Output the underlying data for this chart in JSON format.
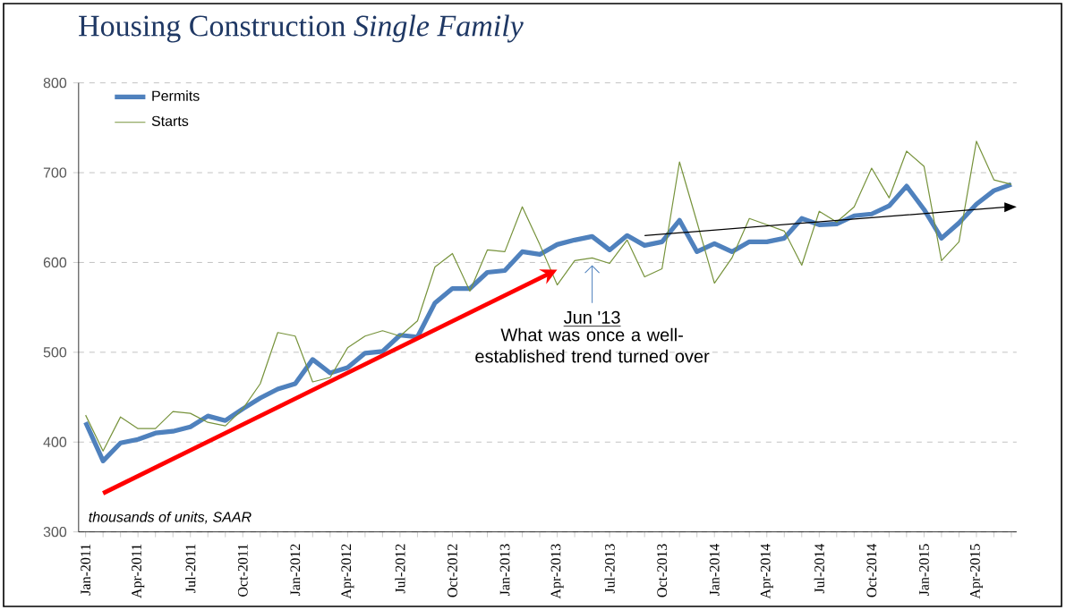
{
  "chart_data": {
    "type": "line",
    "title": "Housing Construction *Single Family*",
    "categories": [
      "Jan-2011",
      null,
      null,
      "Apr-2011",
      null,
      null,
      "Jul-2011",
      null,
      null,
      "Oct-2011",
      null,
      null,
      "Jan-2012",
      null,
      null,
      "Apr-2012",
      null,
      null,
      "Jul-2012",
      null,
      null,
      "Oct-2012",
      null,
      null,
      "Jan-2013",
      null,
      null,
      "Apr-2013",
      null,
      null,
      "Jul-2013",
      null,
      null,
      "Oct-2013",
      null,
      null,
      "Jan-2014",
      null,
      null,
      "Apr-2014",
      null,
      null,
      "Jul-2014",
      null,
      null,
      "Oct-2014",
      null,
      null,
      "Jan-2015",
      null,
      null,
      "Apr-2015",
      null,
      null
    ],
    "series": [
      {
        "name": "Permits",
        "color": "#4f81bd",
        "values": [
          422,
          379,
          399,
          403,
          410,
          412,
          417,
          429,
          424,
          437,
          449,
          459,
          465,
          492,
          477,
          483,
          499,
          501,
          519,
          517,
          555,
          571,
          571,
          589,
          591,
          612,
          609,
          620,
          625,
          629,
          614,
          630,
          619,
          623,
          647,
          612,
          621,
          612,
          623,
          623,
          627,
          649,
          642,
          643,
          652,
          654,
          663,
          685,
          659,
          627,
          644,
          665,
          680,
          687
        ]
      },
      {
        "name": "Starts",
        "color": "#77933c",
        "values": [
          430,
          390,
          428,
          415,
          415,
          434,
          432,
          422,
          418,
          437,
          465,
          522,
          518,
          467,
          472,
          505,
          518,
          524,
          518,
          535,
          595,
          610,
          568,
          614,
          612,
          662,
          620,
          575,
          602,
          605,
          599,
          625,
          584,
          593,
          712,
          645,
          577,
          605,
          649,
          642,
          635,
          597,
          657,
          645,
          662,
          705,
          672,
          724,
          707,
          602,
          623,
          735,
          692,
          687
        ]
      }
    ],
    "ylim": [
      300,
      800
    ],
    "yticks": [
      300,
      400,
      500,
      600,
      700,
      800
    ],
    "grid": "y",
    "legend": "top left",
    "marker": "none",
    "line_style": "solid",
    "annotations": [
      "thousands of units, SAAR",
      "Jun '13",
      "What was once a well-established trend turned over"
    ]
  }
}
